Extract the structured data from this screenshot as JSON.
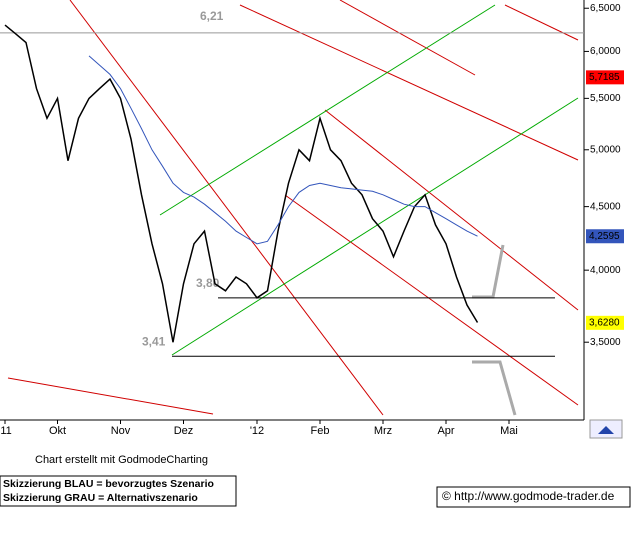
{
  "chart_data": {
    "type": "line",
    "log_scale": true,
    "ylim": [
      3.03,
      6.6
    ],
    "yticks": [
      {
        "value": 6.5,
        "label": "6,5000"
      },
      {
        "value": 6.0,
        "label": "6,0000"
      },
      {
        "value": 5.5,
        "label": "5,5000"
      },
      {
        "value": 5.0,
        "label": "5,0000"
      },
      {
        "value": 4.5,
        "label": "4,5000"
      },
      {
        "value": 4.0,
        "label": "4,0000"
      },
      {
        "value": 3.5,
        "label": "3,5000"
      }
    ],
    "categories": [
      "'11",
      null,
      null,
      null,
      null,
      "Okt",
      null,
      null,
      null,
      null,
      null,
      "Nov",
      null,
      null,
      null,
      null,
      null,
      "Dez",
      null,
      null,
      null,
      null,
      null,
      null,
      "'12",
      null,
      null,
      null,
      null,
      null,
      "Feb",
      null,
      null,
      null,
      null,
      null,
      "Mrz",
      null,
      null,
      null,
      null,
      null,
      "Apr",
      null,
      null,
      null,
      null,
      null,
      "Mai"
    ],
    "series": [
      {
        "color": "#000000",
        "values": [
          6.3,
          6.2,
          6.1,
          5.6,
          5.3,
          5.5,
          4.9,
          5.3,
          5.5,
          5.6,
          5.7,
          5.5,
          5.1,
          4.6,
          4.2,
          3.9,
          3.5,
          3.9,
          4.2,
          4.3,
          3.9,
          3.85,
          3.95,
          3.9,
          3.8,
          3.85,
          4.3,
          4.7,
          5.0,
          4.9,
          5.3,
          5.0,
          4.9,
          4.7,
          4.6,
          4.4,
          4.3,
          4.1,
          4.3,
          4.5,
          4.6,
          4.35,
          4.2,
          3.95,
          3.75,
          3.63,
          null,
          null,
          null
        ]
      },
      {
        "color": "#3355bb",
        "values": [
          null,
          null,
          null,
          null,
          null,
          null,
          null,
          null,
          5.95,
          5.85,
          5.75,
          5.6,
          5.4,
          5.2,
          5.0,
          4.85,
          4.7,
          4.62,
          4.58,
          4.52,
          4.45,
          4.38,
          4.3,
          4.25,
          4.2,
          4.22,
          4.35,
          4.5,
          4.62,
          4.68,
          4.7,
          4.68,
          4.66,
          4.65,
          4.64,
          4.63,
          4.6,
          4.56,
          4.52,
          4.5,
          4.5,
          4.45,
          4.4,
          4.35,
          4.3,
          4.26,
          null,
          null,
          null
        ]
      }
    ],
    "levels": [
      {
        "value": 6.21,
        "label": "6,21"
      },
      {
        "value": 3.8,
        "label": "3,80"
      },
      {
        "value": 3.41,
        "label": "3,41"
      }
    ],
    "price_tags": [
      {
        "value": 5.7185,
        "label": "5,7185",
        "color": "#ff0000",
        "text_color": "#ffffff"
      },
      {
        "value": 4.2595,
        "label": "4,2595",
        "color": "#3355bb",
        "text_color": "#ffffff"
      },
      {
        "value": 3.628,
        "label": "3,6280",
        "color": "#ffff00",
        "text_color": "#000000"
      }
    ],
    "credit": "Chart erstellt mit GodmodeCharting",
    "notes": [
      "Skizzierung BLAU = bevorzugtes Szenario",
      "Skizzierung GRAU = Alternativszenario"
    ],
    "copyright": "© http://www.godmode-trader.de"
  }
}
